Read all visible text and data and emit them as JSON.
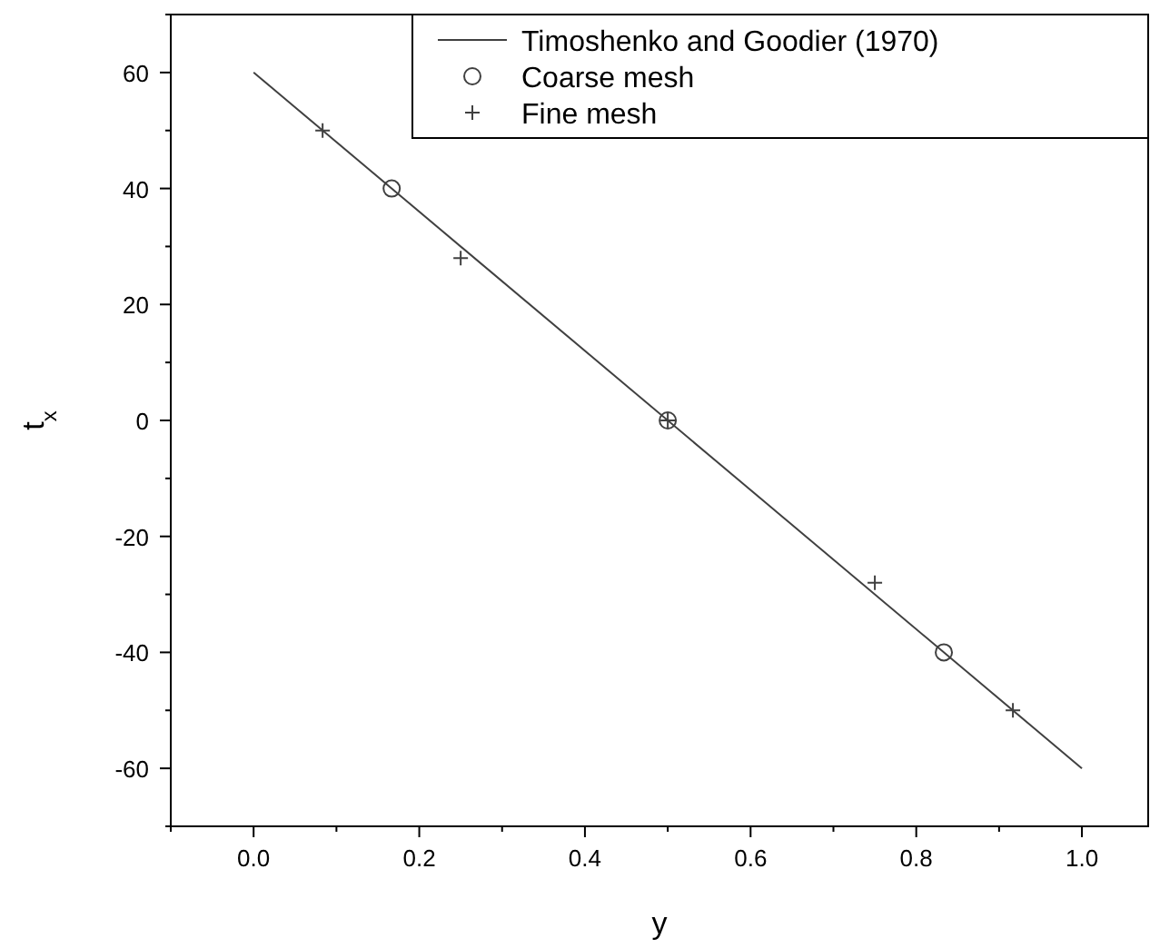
{
  "chart_data": {
    "type": "line",
    "xlabel": "y",
    "ylabel": "t$_{x}$",
    "xlim": [
      -0.1,
      1.08
    ],
    "ylim": [
      -70,
      70
    ],
    "xticks": [
      {
        "value": 0,
        "label": "0.0"
      },
      {
        "value": 0.2,
        "label": "0.2"
      },
      {
        "value": 0.4,
        "label": "0.4"
      },
      {
        "value": 0.6,
        "label": "0.6"
      },
      {
        "value": 0.8,
        "label": "0.8"
      },
      {
        "value": 1,
        "label": "1.0"
      }
    ],
    "yticks": [
      -60,
      -40,
      -20,
      0,
      20,
      40,
      60
    ],
    "legend": "top right",
    "grid": false,
    "series": [
      {
        "name": "Timoshenko and Goodier (1970)",
        "color": "#404040",
        "marker": "none",
        "x": [
          0,
          1
        ],
        "values": [
          60,
          -60
        ]
      },
      {
        "name": "Coarse mesh",
        "type": "scatter",
        "color": "#404040",
        "marker": "circle",
        "x": [
          0.1667,
          0.5,
          0.8333
        ],
        "values": [
          40,
          0,
          -40
        ]
      },
      {
        "name": "Fine mesh",
        "type": "scatter",
        "color": "#404040",
        "marker": "cross",
        "x": [
          0.0833,
          0.25,
          0.5,
          0.75,
          0.9167
        ],
        "values": [
          50,
          28,
          0,
          -28,
          -50
        ]
      }
    ]
  }
}
